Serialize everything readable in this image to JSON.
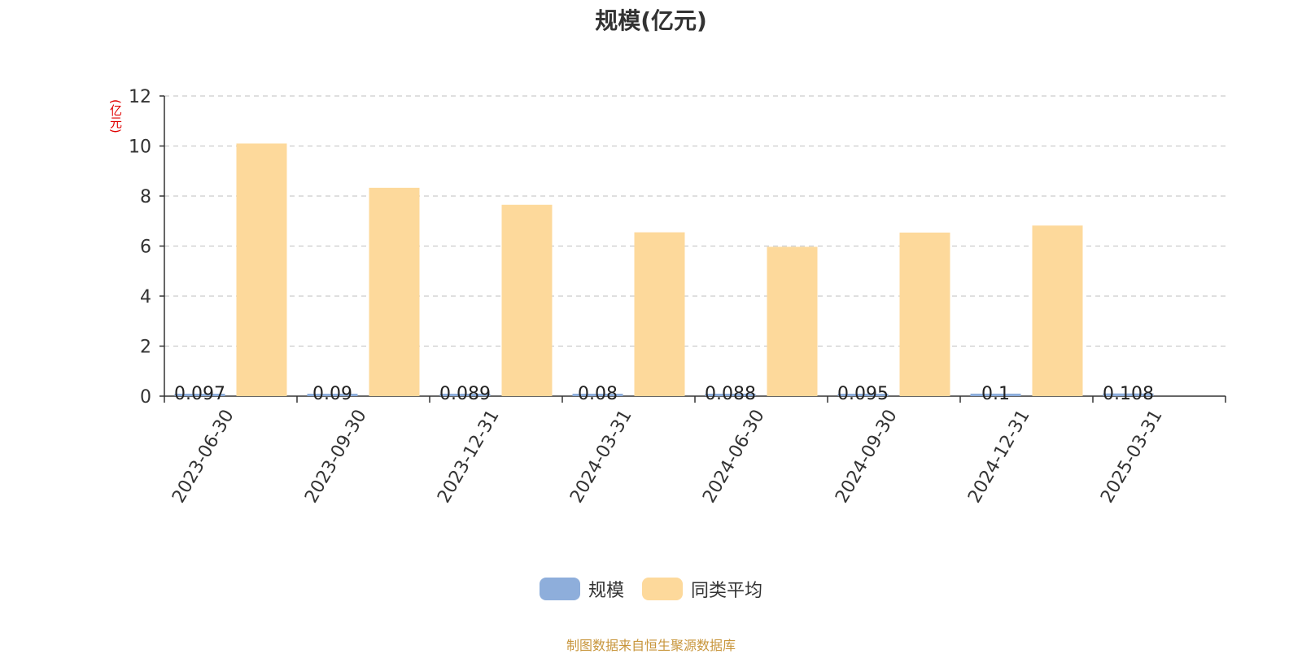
{
  "chart_data": {
    "type": "bar",
    "title": "规模(亿元)",
    "ylabel": "(亿元)",
    "xlabel": "",
    "categories": [
      "2023-06-30",
      "2023-09-30",
      "2023-12-31",
      "2024-03-31",
      "2024-06-30",
      "2024-09-30",
      "2024-12-31",
      "2025-03-31"
    ],
    "ylim": [
      0,
      12
    ],
    "yticks": [
      0,
      2,
      4,
      6,
      8,
      10,
      12
    ],
    "grid": true,
    "legend_position": "bottom",
    "series": [
      {
        "name": "规模",
        "color": "#8eaedb",
        "values": [
          0.097,
          0.09,
          0.089,
          0.08,
          0.088,
          0.095,
          0.1,
          0.108
        ],
        "labels": [
          "0.097",
          "0.09",
          "0.089",
          "0.08",
          "0.088",
          "0.095",
          "0.1",
          "0.108"
        ]
      },
      {
        "name": "同类平均",
        "color": "#fdd99b",
        "values": [
          10.1,
          8.33,
          7.65,
          6.55,
          5.97,
          6.54,
          6.82,
          null
        ]
      }
    ]
  },
  "legend": {
    "items": [
      {
        "label": "规模",
        "color": "#8eaedb"
      },
      {
        "label": "同类平均",
        "color": "#fdd99b"
      }
    ]
  },
  "footer": {
    "source": "制图数据来自恒生聚源数据库"
  }
}
